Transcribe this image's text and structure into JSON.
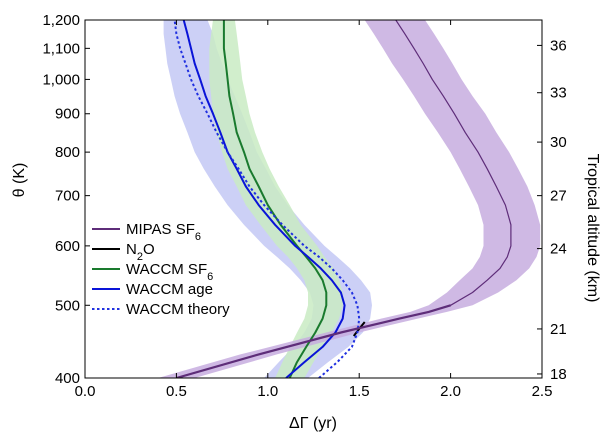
{
  "chart_data": {
    "type": "line",
    "xlabel": "ΔΓ (yr)",
    "ylabel": "θ (K)",
    "y2label": "Tropical altitude (km)",
    "xlim": [
      0.0,
      2.5
    ],
    "ylim": [
      400,
      1200
    ],
    "yscale": "log",
    "xticks": [
      "0.0",
      "0.5",
      "1.0",
      "1.5",
      "2.0",
      "2.5"
    ],
    "yticks": [
      {
        "value": 400,
        "label": "400"
      },
      {
        "value": 500,
        "label": "500"
      },
      {
        "value": 600,
        "label": "600"
      },
      {
        "value": 700,
        "label": "700"
      },
      {
        "value": 800,
        "label": "800"
      },
      {
        "value": 900,
        "label": "900"
      },
      {
        "value": 1000,
        "label": "1,000"
      },
      {
        "value": 1100,
        "label": "1,100"
      },
      {
        "value": 1200,
        "label": "1,200"
      }
    ],
    "y2ticks": [
      {
        "theta": 405,
        "label": "18"
      },
      {
        "theta": 465,
        "label": "21"
      },
      {
        "theta": 595,
        "label": "24"
      },
      {
        "theta": 700,
        "label": "27"
      },
      {
        "theta": 825,
        "label": "30"
      },
      {
        "theta": 960,
        "label": "33"
      },
      {
        "theta": 1110,
        "label": "36"
      }
    ],
    "grid": false,
    "legend_position": "left",
    "colors": {
      "mipas": "#5e2d79",
      "mipas_band": "#c7addf",
      "n2o": "#000000",
      "sf6": "#1a7a2e",
      "sf6_band": "#c9ebc3",
      "age": "#0a14d8",
      "age_band": "#c3c8f5",
      "theory": "#2030e0"
    },
    "series": [
      {
        "name": "MIPAS SF6",
        "color": "#5e2d79",
        "style": "solid",
        "theta": [
          400,
          430,
          460,
          480,
          490,
          500,
          520,
          540,
          560,
          580,
          600,
          640,
          680,
          720,
          760,
          800,
          850,
          900,
          950,
          1000,
          1050,
          1100,
          1150,
          1200
        ],
        "x": [
          0.5,
          0.95,
          1.4,
          1.72,
          1.88,
          2.0,
          2.12,
          2.2,
          2.27,
          2.31,
          2.33,
          2.33,
          2.3,
          2.25,
          2.2,
          2.15,
          2.08,
          2.02,
          1.96,
          1.9,
          1.85,
          1.8,
          1.75,
          1.7
        ],
        "band_low": [
          0.4,
          0.85,
          1.32,
          1.62,
          1.78,
          1.88,
          1.98,
          2.05,
          2.12,
          2.16,
          2.18,
          2.18,
          2.15,
          2.1,
          2.05,
          2.0,
          1.93,
          1.86,
          1.8,
          1.74,
          1.68,
          1.63,
          1.58,
          1.53
        ],
        "band_high": [
          0.6,
          1.05,
          1.5,
          1.82,
          1.98,
          2.12,
          2.26,
          2.36,
          2.43,
          2.47,
          2.49,
          2.49,
          2.46,
          2.42,
          2.37,
          2.32,
          2.25,
          2.19,
          2.12,
          2.06,
          2.01,
          1.96,
          1.91,
          1.86
        ]
      },
      {
        "name": "N2O",
        "color": "#000000",
        "style": "solid",
        "theta": [
          455,
          465,
          475
        ],
        "x": [
          1.47,
          1.5,
          1.53
        ]
      },
      {
        "name": "WACCM SF6",
        "color": "#1a7a2e",
        "style": "solid",
        "theta": [
          400,
          420,
          440,
          460,
          480,
          500,
          520,
          540,
          560,
          580,
          600,
          640,
          680,
          720,
          760,
          800,
          850,
          900,
          950,
          1000,
          1050,
          1100,
          1150,
          1200
        ],
        "x": [
          1.12,
          1.16,
          1.21,
          1.26,
          1.3,
          1.32,
          1.32,
          1.3,
          1.26,
          1.21,
          1.16,
          1.07,
          1.0,
          0.95,
          0.9,
          0.87,
          0.83,
          0.81,
          0.79,
          0.78,
          0.77,
          0.76,
          0.76,
          0.76
        ],
        "band_low": [
          1.04,
          1.08,
          1.12,
          1.16,
          1.2,
          1.22,
          1.22,
          1.2,
          1.16,
          1.11,
          1.05,
          0.96,
          0.88,
          0.83,
          0.78,
          0.75,
          0.72,
          0.7,
          0.69,
          0.68,
          0.68,
          0.68,
          0.69,
          0.7
        ],
        "band_high": [
          1.2,
          1.25,
          1.3,
          1.35,
          1.39,
          1.41,
          1.41,
          1.39,
          1.36,
          1.31,
          1.27,
          1.18,
          1.12,
          1.06,
          1.01,
          0.97,
          0.93,
          0.9,
          0.88,
          0.86,
          0.85,
          0.84,
          0.83,
          0.82
        ]
      },
      {
        "name": "WACCM age",
        "color": "#0a14d8",
        "style": "solid",
        "theta": [
          400,
          420,
          440,
          460,
          480,
          500,
          520,
          540,
          560,
          580,
          600,
          640,
          680,
          720,
          760,
          800,
          850,
          900,
          950,
          1000,
          1050,
          1100,
          1150,
          1200
        ],
        "x": [
          1.1,
          1.2,
          1.3,
          1.37,
          1.41,
          1.42,
          1.4,
          1.35,
          1.29,
          1.22,
          1.15,
          1.04,
          0.95,
          0.88,
          0.83,
          0.78,
          0.74,
          0.7,
          0.66,
          0.63,
          0.6,
          0.58,
          0.56,
          0.54
        ],
        "band_low": [
          0.98,
          1.06,
          1.14,
          1.2,
          1.24,
          1.25,
          1.23,
          1.18,
          1.12,
          1.05,
          0.98,
          0.87,
          0.78,
          0.71,
          0.65,
          0.6,
          0.56,
          0.52,
          0.49,
          0.47,
          0.45,
          0.44,
          0.43,
          0.43
        ],
        "band_high": [
          1.22,
          1.33,
          1.44,
          1.52,
          1.56,
          1.57,
          1.56,
          1.51,
          1.45,
          1.38,
          1.31,
          1.2,
          1.11,
          1.04,
          0.99,
          0.94,
          0.9,
          0.86,
          0.82,
          0.78,
          0.75,
          0.72,
          0.7,
          0.67
        ]
      },
      {
        "name": "WACCM theory",
        "color": "#2030e0",
        "style": "dotted",
        "theta": [
          400,
          420,
          440,
          460,
          480,
          500,
          520,
          540,
          560,
          580,
          600,
          640,
          680,
          720,
          760,
          800,
          850,
          900,
          950,
          1000,
          1050,
          1100,
          1150,
          1200
        ],
        "x": [
          1.28,
          1.38,
          1.46,
          1.49,
          1.5,
          1.49,
          1.46,
          1.41,
          1.35,
          1.28,
          1.2,
          1.08,
          0.98,
          0.9,
          0.84,
          0.78,
          0.72,
          0.67,
          0.62,
          0.58,
          0.55,
          0.52,
          0.5,
          0.49
        ]
      }
    ]
  }
}
